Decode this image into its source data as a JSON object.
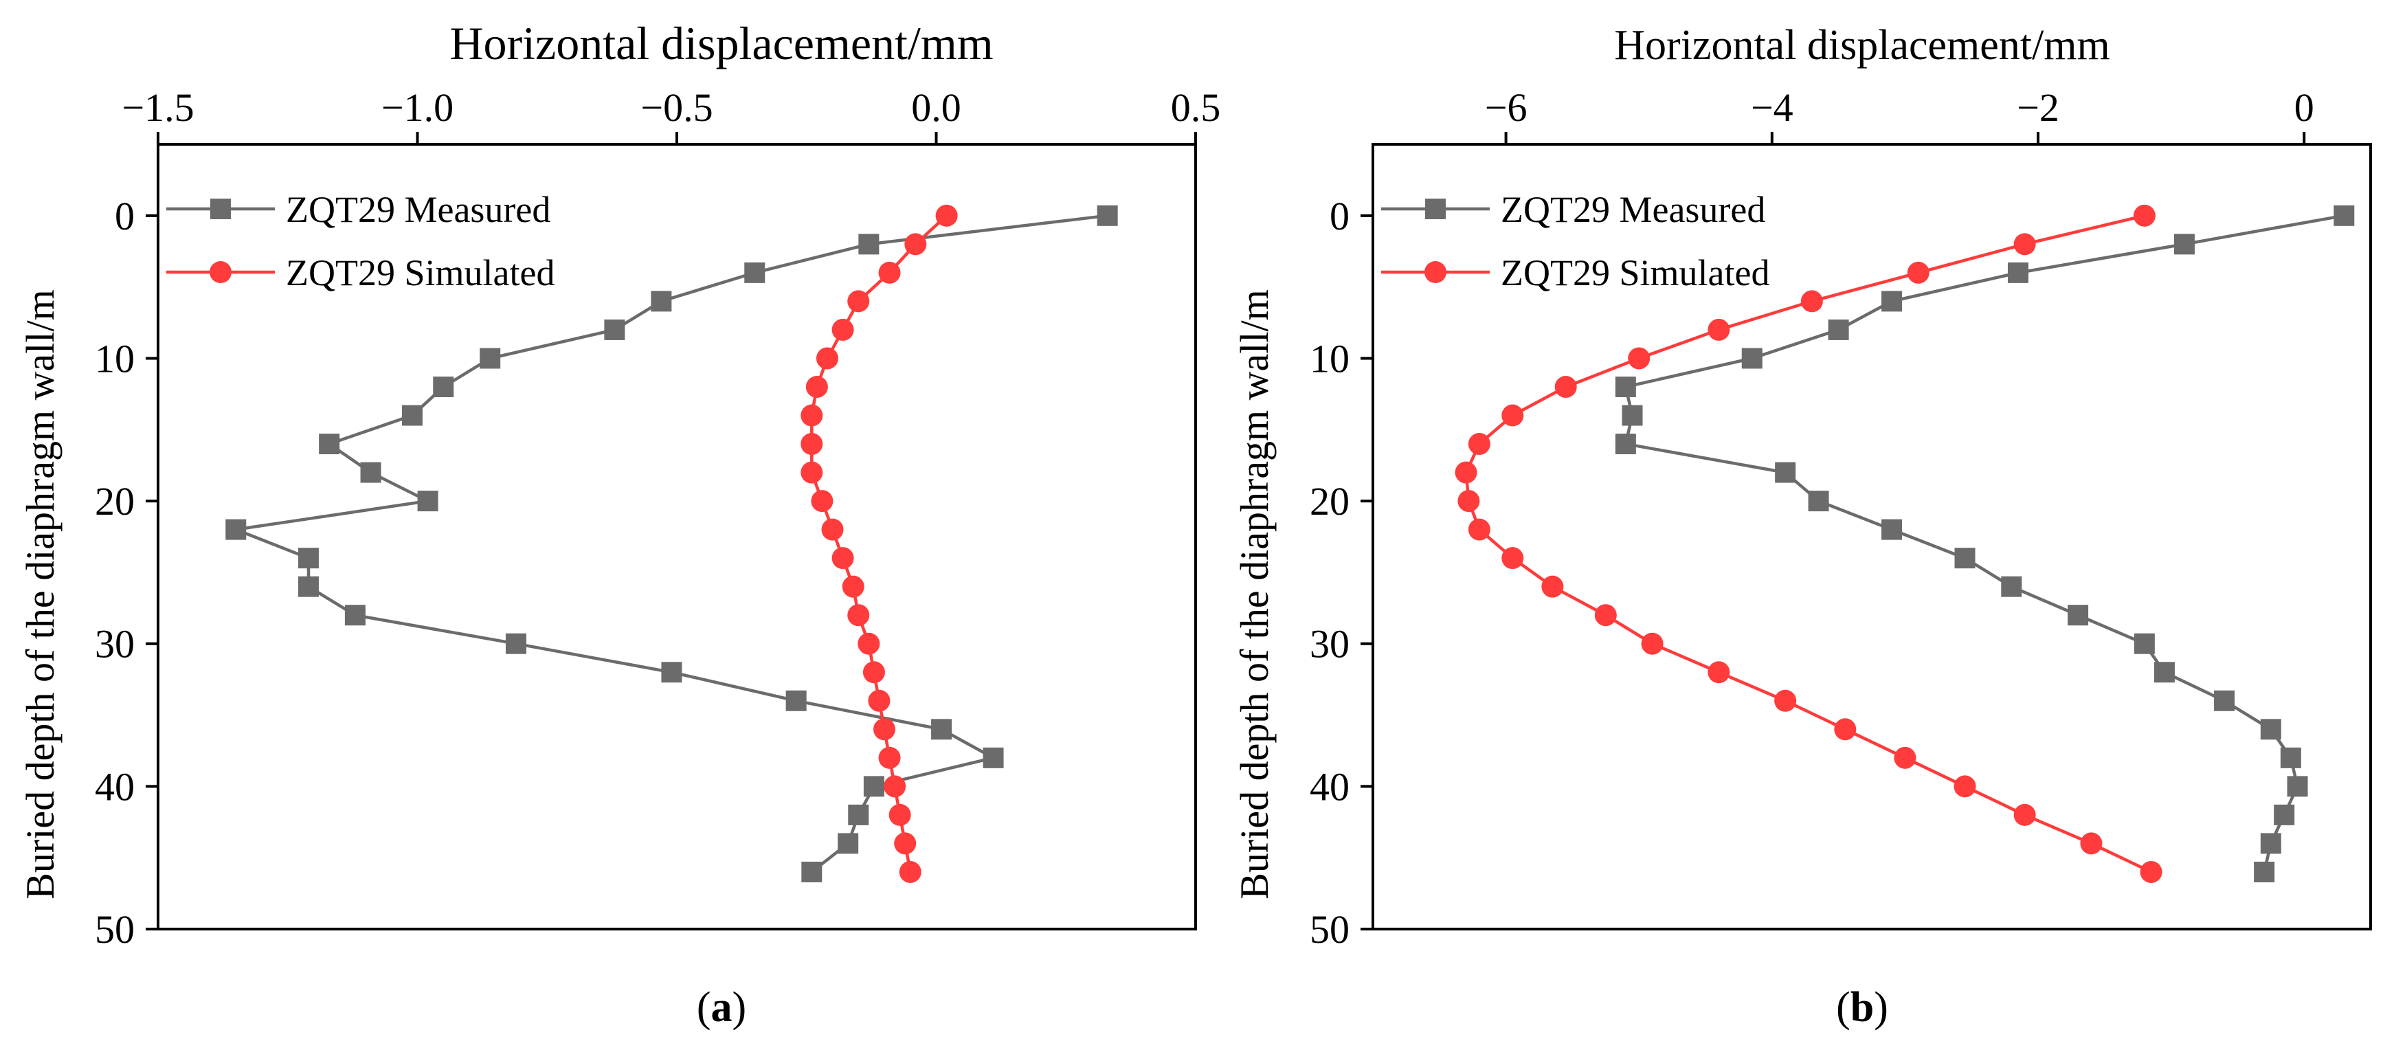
{
  "colors": {
    "measured": "#6b6b6b",
    "simulated": "#ff3b3b",
    "axis": "#000000"
  },
  "chart_data": [
    {
      "type": "line",
      "panel_label": "a",
      "title": "Horizontal displacement/mm",
      "xlabel": "Horizontal displacement/mm",
      "ylabel": "Buried depth of the diaphragm wall/m",
      "xlim": [
        -1.5,
        0.5
      ],
      "ylim": [
        -5,
        50
      ],
      "y_inverted": true,
      "x_axis_position": "top",
      "xticks": [
        -1.5,
        -1.0,
        -0.5,
        0.0,
        0.5
      ],
      "xtick_labels": [
        "−1.5",
        "−1.0",
        "−0.5",
        "0.0",
        "0.5"
      ],
      "yticks": [
        0,
        10,
        20,
        30,
        40,
        50
      ],
      "ytick_labels": [
        "0",
        "10",
        "20",
        "30",
        "40",
        "50"
      ],
      "legend_position": "top-left",
      "series": [
        {
          "name": "ZQT29 Measured",
          "marker": "square",
          "points": [
            [
              0.33,
              0
            ],
            [
              -0.13,
              2
            ],
            [
              -0.35,
              4
            ],
            [
              -0.53,
              6
            ],
            [
              -0.62,
              8
            ],
            [
              -0.86,
              10
            ],
            [
              -0.95,
              12
            ],
            [
              -1.01,
              14
            ],
            [
              -1.17,
              16
            ],
            [
              -1.09,
              18
            ],
            [
              -0.98,
              20
            ],
            [
              -1.35,
              22
            ],
            [
              -1.21,
              24
            ],
            [
              -1.21,
              26
            ],
            [
              -1.12,
              28
            ],
            [
              -0.81,
              30
            ],
            [
              -0.51,
              32
            ],
            [
              -0.27,
              34
            ],
            [
              0.01,
              36
            ],
            [
              0.11,
              38
            ],
            [
              -0.12,
              40
            ],
            [
              -0.15,
              42
            ],
            [
              -0.17,
              44
            ],
            [
              -0.24,
              46
            ]
          ]
        },
        {
          "name": "ZQT29 Simulated",
          "marker": "circle",
          "points": [
            [
              0.02,
              0
            ],
            [
              -0.04,
              2
            ],
            [
              -0.09,
              4
            ],
            [
              -0.15,
              6
            ],
            [
              -0.18,
              8
            ],
            [
              -0.21,
              10
            ],
            [
              -0.23,
              12
            ],
            [
              -0.24,
              14
            ],
            [
              -0.24,
              16
            ],
            [
              -0.24,
              18
            ],
            [
              -0.22,
              20
            ],
            [
              -0.2,
              22
            ],
            [
              -0.18,
              24
            ],
            [
              -0.16,
              26
            ],
            [
              -0.15,
              28
            ],
            [
              -0.13,
              30
            ],
            [
              -0.12,
              32
            ],
            [
              -0.11,
              34
            ],
            [
              -0.1,
              36
            ],
            [
              -0.09,
              38
            ],
            [
              -0.08,
              40
            ],
            [
              -0.07,
              42
            ],
            [
              -0.06,
              44
            ],
            [
              -0.05,
              46
            ]
          ]
        }
      ]
    },
    {
      "type": "line",
      "panel_label": "b",
      "title": "Horizontal displacement/mm",
      "xlabel": "Horizontal displacement/mm",
      "ylabel": "Buried depth of the diaphragm wall/m",
      "xlim": [
        -7,
        0.5
      ],
      "ylim": [
        -5,
        50
      ],
      "y_inverted": true,
      "x_axis_position": "top",
      "xticks": [
        -6,
        -4,
        -2,
        0
      ],
      "xtick_labels": [
        "−6",
        "−4",
        "−2",
        "0"
      ],
      "yticks": [
        0,
        10,
        20,
        30,
        40,
        50
      ],
      "ytick_labels": [
        "0",
        "10",
        "20",
        "30",
        "40",
        "50"
      ],
      "legend_position": "top-left",
      "series": [
        {
          "name": "ZQT29 Measured",
          "marker": "square",
          "points": [
            [
              0.3,
              0
            ],
            [
              -0.9,
              2
            ],
            [
              -2.15,
              4
            ],
            [
              -3.1,
              6
            ],
            [
              -3.5,
              8
            ],
            [
              -4.15,
              10
            ],
            [
              -5.1,
              12
            ],
            [
              -5.05,
              14
            ],
            [
              -5.1,
              16
            ],
            [
              -3.9,
              18
            ],
            [
              -3.65,
              20
            ],
            [
              -3.1,
              22
            ],
            [
              -2.55,
              24
            ],
            [
              -2.2,
              26
            ],
            [
              -1.7,
              28
            ],
            [
              -1.2,
              30
            ],
            [
              -1.05,
              32
            ],
            [
              -0.6,
              34
            ],
            [
              -0.25,
              36
            ],
            [
              -0.1,
              38
            ],
            [
              -0.05,
              40
            ],
            [
              -0.15,
              42
            ],
            [
              -0.25,
              44
            ],
            [
              -0.3,
              46
            ]
          ]
        },
        {
          "name": "ZQT29 Simulated",
          "marker": "circle",
          "points": [
            [
              -1.2,
              0
            ],
            [
              -2.1,
              2
            ],
            [
              -2.9,
              4
            ],
            [
              -3.7,
              6
            ],
            [
              -4.4,
              8
            ],
            [
              -5.0,
              10
            ],
            [
              -5.55,
              12
            ],
            [
              -5.95,
              14
            ],
            [
              -6.2,
              16
            ],
            [
              -6.3,
              18
            ],
            [
              -6.28,
              20
            ],
            [
              -6.2,
              22
            ],
            [
              -5.95,
              24
            ],
            [
              -5.65,
              26
            ],
            [
              -5.25,
              28
            ],
            [
              -4.9,
              30
            ],
            [
              -4.4,
              32
            ],
            [
              -3.9,
              34
            ],
            [
              -3.45,
              36
            ],
            [
              -3.0,
              38
            ],
            [
              -2.55,
              40
            ],
            [
              -2.1,
              42
            ],
            [
              -1.6,
              44
            ],
            [
              -1.15,
              46
            ]
          ]
        }
      ]
    }
  ]
}
